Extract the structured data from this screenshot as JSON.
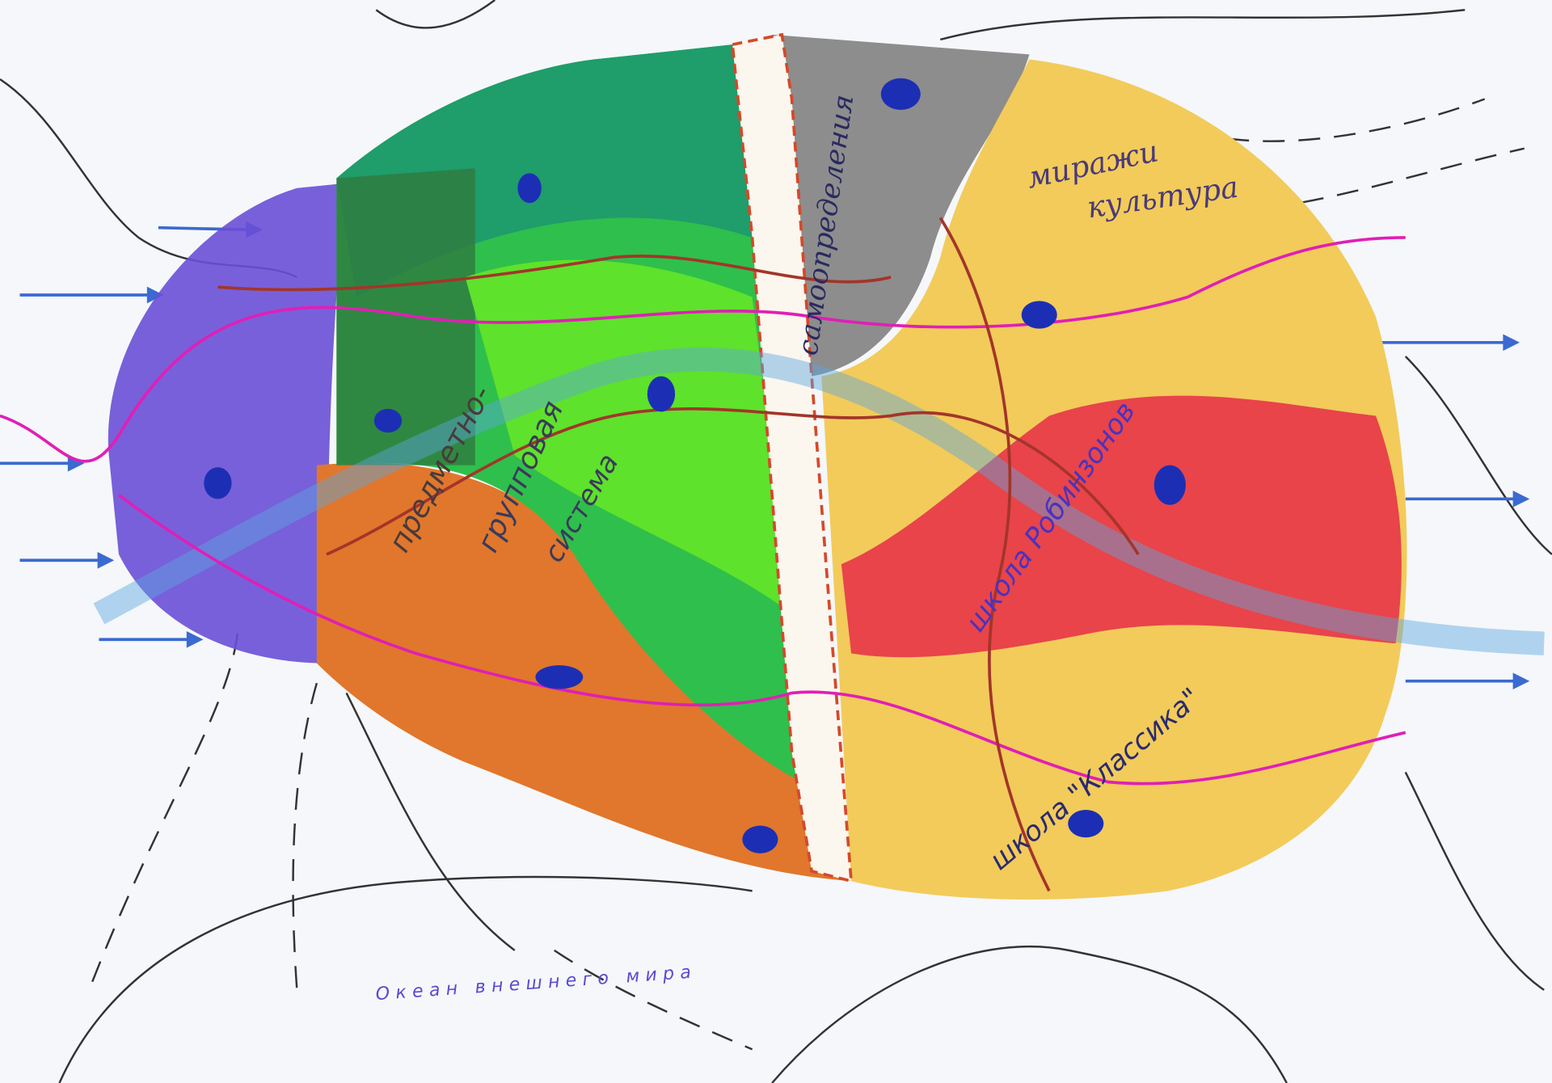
{
  "map": {
    "labels": [
      {
        "text": "миражи"
      },
      {
        "text": "культура"
      },
      {
        "text": "школа Робинзонов"
      },
      {
        "text": "школа \"Классика\""
      },
      {
        "text": "предметно-"
      },
      {
        "text": "групповая"
      },
      {
        "text": "система"
      },
      {
        "text": "самоопределения"
      },
      {
        "text": "Океан внешнего мира"
      }
    ]
  }
}
